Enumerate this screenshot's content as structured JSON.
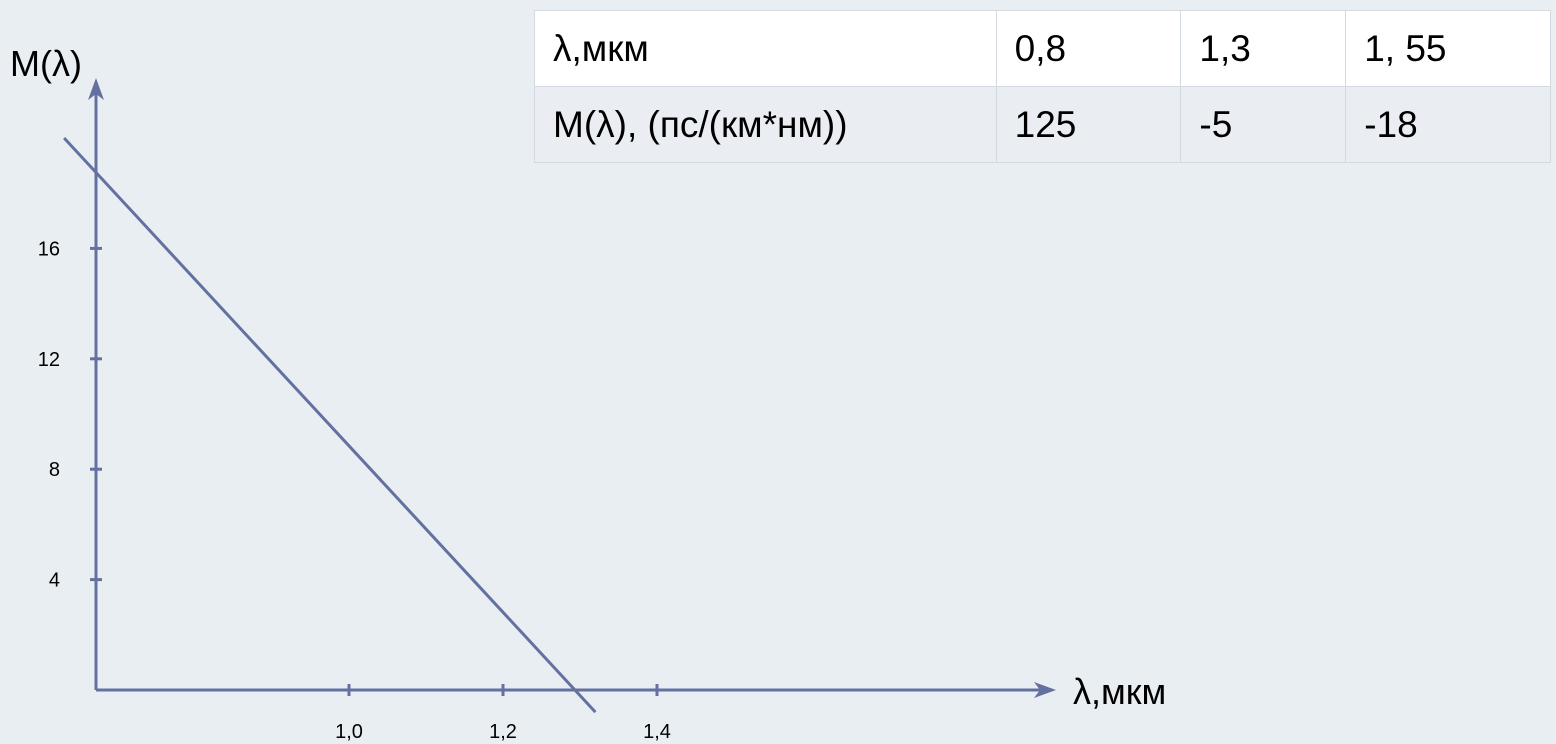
{
  "chart_data": {
    "type": "line",
    "title": "",
    "xlabel": "λ,мкм",
    "ylabel": "M(λ)",
    "x_ticks": [
      {
        "value": 1.0,
        "label": "1,0"
      },
      {
        "value": 1.2,
        "label": "1,2"
      },
      {
        "value": 1.4,
        "label": "1,4"
      }
    ],
    "y_ticks": [
      {
        "value": 4,
        "label": "4"
      },
      {
        "value": 8,
        "label": "8"
      },
      {
        "value": 12,
        "label": "12"
      },
      {
        "value": 16,
        "label": "16"
      }
    ],
    "series": [
      {
        "points": [
          {
            "x": 0.63,
            "y": 20.0
          },
          {
            "x": 1.32,
            "y": -0.8
          }
        ]
      }
    ],
    "xlim": [
      0.68,
      1.9
    ],
    "ylim": [
      0,
      21
    ],
    "grid": false,
    "colors": {
      "line": "#6471a0",
      "axis": "#6471a0"
    }
  },
  "table": {
    "rows": [
      {
        "header": "λ,мкм",
        "cells": [
          "0,8",
          "1,3",
          "1, 55"
        ]
      },
      {
        "header": "M(λ), (пс/(км*нм))",
        "cells": [
          "125",
          "-5",
          "-18"
        ]
      }
    ]
  }
}
